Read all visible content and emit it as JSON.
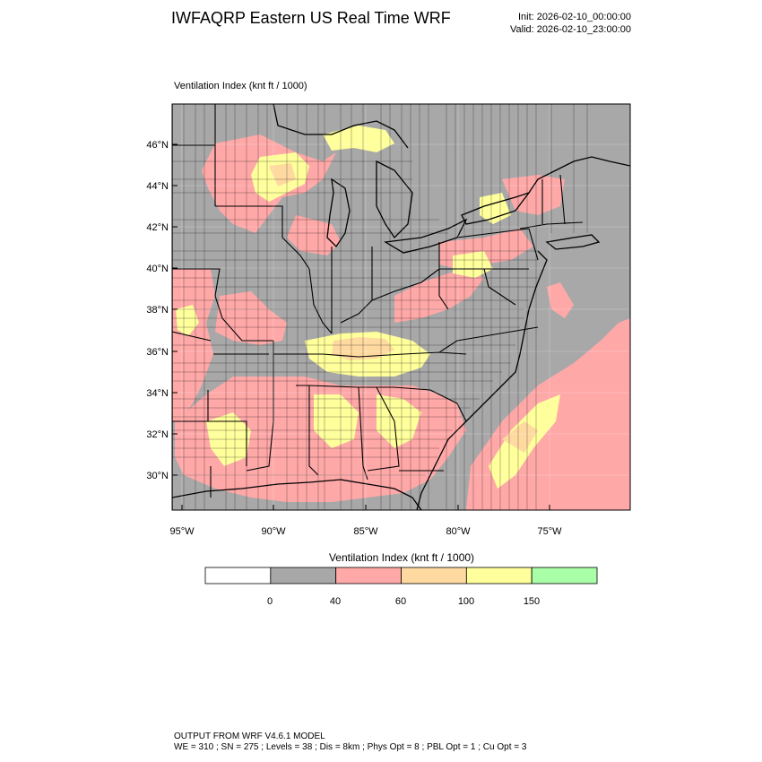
{
  "header": {
    "title": "IWFAQRP Eastern US Real Time WRF",
    "init": "Init: 2026-02-10_00:00:00",
    "valid": "Valid: 2026-02-10_23:00:00"
  },
  "map": {
    "variable_label": "Ventilation Index   (knt ft / 1000)",
    "lat_ticks": [
      "46°N",
      "44°N",
      "42°N",
      "40°N",
      "38°N",
      "36°N",
      "34°N",
      "32°N",
      "30°N"
    ],
    "lon_ticks": [
      "95°W",
      "90°W",
      "85°W",
      "80°W",
      "75°W"
    ]
  },
  "colorbar": {
    "title": "Ventilation Index  (knt ft / 1000)",
    "bins": [
      {
        "color": "#ffffff"
      },
      {
        "color": "#a8a8a8"
      },
      {
        "color": "#ffa8a8"
      },
      {
        "color": "#ffdaa0"
      },
      {
        "color": "#ffff9c"
      },
      {
        "color": "#a8ffa8"
      }
    ],
    "labels": [
      "0",
      "40",
      "60",
      "100",
      "150"
    ]
  },
  "footer": {
    "line1": "OUTPUT FROM WRF V4.6.1 MODEL",
    "line2": "WE = 310 ; SN = 275 ; Levels = 38 ; Dis = 8km ; Phys Opt = 8 ; PBL Opt = 1 ; Cu Opt = 3"
  }
}
